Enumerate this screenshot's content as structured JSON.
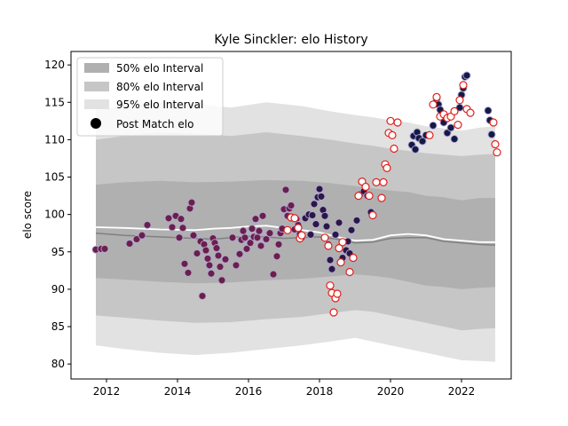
{
  "chart_data": {
    "type": "line",
    "title": "Kyle Sinckler: elo History",
    "xlabel": "",
    "ylabel": "elo score",
    "xlim": [
      2011.0,
      2023.4
    ],
    "ylim": [
      78.0,
      121.8
    ],
    "x_ticks": [
      2012,
      2014,
      2016,
      2018,
      2020,
      2022
    ],
    "y_ticks": [
      80,
      85,
      90,
      95,
      100,
      105,
      110,
      115,
      120
    ],
    "grid": false,
    "legend": {
      "placement": "top-left",
      "entries": [
        "50% elo Interval",
        "80% elo Interval",
        "95% elo Interval",
        "Post Match elo"
      ]
    },
    "colors": {
      "band50": "#b0b0b0",
      "band80": "#c6c6c6",
      "band95": "#e2e2e2",
      "median_line": "#808080",
      "mean_line": "#ffffff",
      "dot_early": "#6b1f4a",
      "dot_mid": "#2b1745",
      "dot_late": "#141a44",
      "dot_ring": "#b0a8d8",
      "hollow_ring": "#e0201a"
    },
    "bands": {
      "x": [
        2011.7,
        2012.5,
        2013.5,
        2014.5,
        2015.5,
        2016.5,
        2017.5,
        2018.3,
        2019.0,
        2019.5,
        2020.0,
        2020.5,
        2021.0,
        2021.5,
        2022.0,
        2022.5,
        2022.95
      ],
      "p50_low": [
        91.5,
        91.3,
        91.0,
        90.8,
        90.9,
        91.2,
        91.4,
        91.7,
        92.0,
        91.8,
        91.5,
        91.0,
        90.5,
        90.3,
        90.0,
        90.2,
        90.3
      ],
      "p50_high": [
        104.0,
        104.3,
        104.5,
        104.3,
        104.4,
        104.6,
        104.5,
        104.2,
        103.8,
        103.5,
        103.2,
        103.0,
        102.5,
        102.3,
        101.9,
        102.2,
        102.2
      ],
      "p80_low": [
        86.5,
        86.2,
        85.8,
        85.5,
        85.6,
        86.0,
        86.3,
        86.8,
        87.2,
        87.0,
        86.5,
        86.0,
        85.5,
        85.0,
        84.5,
        84.7,
        84.8
      ],
      "p80_high": [
        110.0,
        110.5,
        111.0,
        110.8,
        110.5,
        111.0,
        110.5,
        110.0,
        109.5,
        109.2,
        108.8,
        108.5,
        108.2,
        108.0,
        107.8,
        108.0,
        108.1
      ],
      "p95_low": [
        82.5,
        82.0,
        81.5,
        81.2,
        81.5,
        82.0,
        82.5,
        83.0,
        83.5,
        83.0,
        82.5,
        82.0,
        81.5,
        81.0,
        80.5,
        80.4,
        80.3
      ],
      "p95_high": [
        114.0,
        114.5,
        115.0,
        114.8,
        114.3,
        115.0,
        114.5,
        113.8,
        113.3,
        113.0,
        112.6,
        112.3,
        111.8,
        111.5,
        111.2,
        111.6,
        111.8
      ]
    },
    "series": [
      {
        "name": "median",
        "x": [
          2011.7,
          2012.5,
          2013.5,
          2014.5,
          2015.0,
          2015.5,
          2016.0,
          2016.5,
          2017.0,
          2017.5,
          2018.0,
          2018.5,
          2019.0,
          2019.5,
          2020.0,
          2020.5,
          2021.0,
          2021.5,
          2022.0,
          2022.5,
          2022.95
        ],
        "values": [
          97.5,
          97.2,
          97.0,
          96.8,
          96.7,
          96.9,
          97.1,
          97.0,
          96.8,
          96.9,
          97.0,
          96.7,
          96.2,
          96.3,
          96.8,
          96.9,
          96.9,
          96.4,
          96.2,
          96.0,
          95.9
        ]
      },
      {
        "name": "mean",
        "x": [
          2011.7,
          2012.5,
          2013.5,
          2014.5,
          2015.0,
          2015.5,
          2016.0,
          2016.5,
          2017.0,
          2017.5,
          2018.0,
          2018.5,
          2019.0,
          2019.5,
          2020.0,
          2020.5,
          2021.0,
          2021.5,
          2022.0,
          2022.5,
          2022.95
        ],
        "values": [
          98.3,
          98.2,
          98.0,
          97.9,
          98.1,
          98.2,
          98.4,
          98.5,
          98.2,
          97.9,
          97.6,
          97.0,
          96.5,
          96.6,
          97.2,
          97.4,
          97.2,
          96.7,
          96.5,
          96.3,
          96.3
        ]
      }
    ],
    "points": {
      "x": [
        2011.7,
        2011.85,
        2011.95,
        2012.65,
        2012.85,
        2013.0,
        2013.15,
        2013.75,
        2013.85,
        2013.95,
        2014.05,
        2014.1,
        2014.15,
        2014.2,
        2014.3,
        2014.35,
        2014.4,
        2014.45,
        2014.55,
        2014.65,
        2014.7,
        2014.75,
        2014.8,
        2014.85,
        2014.9,
        2014.95,
        2015.0,
        2015.05,
        2015.1,
        2015.15,
        2015.2,
        2015.25,
        2015.35,
        2015.55,
        2015.65,
        2015.75,
        2015.8,
        2015.85,
        2015.9,
        2015.95,
        2016.05,
        2016.1,
        2016.15,
        2016.2,
        2016.25,
        2016.3,
        2016.35,
        2016.4,
        2016.5,
        2016.6,
        2016.7,
        2016.8,
        2016.85,
        2016.9,
        2016.95,
        2017.0,
        2017.05,
        2017.1,
        2017.15,
        2017.2,
        2017.3,
        2017.35,
        2017.4,
        2017.45,
        2017.5,
        2017.6,
        2017.7,
        2017.75,
        2017.8,
        2017.85,
        2017.9,
        2017.95,
        2018.0,
        2018.05,
        2018.1,
        2018.15,
        2018.2,
        2018.25,
        2018.3,
        2018.35,
        2018.45,
        2018.55,
        2018.65,
        2018.75,
        2018.8,
        2018.85,
        2018.9,
        2018.95,
        2019.05,
        2019.15,
        2019.25,
        2019.35,
        2019.45,
        2020.6,
        2020.65,
        2020.7,
        2020.75,
        2020.8,
        2020.9,
        2021.0,
        2021.2,
        2021.3,
        2021.35,
        2021.4,
        2021.5,
        2021.6,
        2021.7,
        2021.8,
        2021.95,
        2022.0,
        2022.05,
        2022.1,
        2022.15,
        2022.75,
        2022.8,
        2022.85
      ],
      "values": [
        95.3,
        95.4,
        95.4,
        96.1,
        96.7,
        97.2,
        98.6,
        99.5,
        98.3,
        99.8,
        96.9,
        99.4,
        98.2,
        93.4,
        92.2,
        100.8,
        101.6,
        97.2,
        94.8,
        96.4,
        89.1,
        96.0,
        95.2,
        94.1,
        93.2,
        92.1,
        96.8,
        96.2,
        95.5,
        94.5,
        93.0,
        91.2,
        94.0,
        96.9,
        93.2,
        94.7,
        96.6,
        97.8,
        96.9,
        95.4,
        96.2,
        98.1,
        97.0,
        99.4,
        96.9,
        97.8,
        95.8,
        99.8,
        96.7,
        97.5,
        92.0,
        94.4,
        96.0,
        97.5,
        98.1,
        100.7,
        103.3,
        99.8,
        100.8,
        101.2,
        98.0,
        99.4,
        98.6,
        97.4,
        96.9,
        99.5,
        100.0,
        97.3,
        99.9,
        101.4,
        98.7,
        102.3,
        103.4,
        102.4,
        100.6,
        99.8,
        98.4,
        96.0,
        93.9,
        92.7,
        97.3,
        98.9,
        94.2,
        95.2,
        96.4,
        94.8,
        97.9,
        94.1,
        99.2,
        102.7,
        103.1,
        102.5,
        100.3,
        109.3,
        110.5,
        108.7,
        111.0,
        110.2,
        109.8,
        110.6,
        111.9,
        115.4,
        114.7,
        114.0,
        112.3,
        110.9,
        111.6,
        110.1,
        114.3,
        116.0,
        116.9,
        118.4,
        118.6,
        113.9,
        112.6,
        110.7
      ]
    },
    "hollow_points": {
      "x": [
        2017.1,
        2017.2,
        2017.3,
        2017.4,
        2017.45,
        2017.5,
        2018.15,
        2018.25,
        2018.3,
        2018.35,
        2018.4,
        2018.45,
        2018.5,
        2018.55,
        2018.6,
        2018.65,
        2018.85,
        2018.95,
        2019.1,
        2019.2,
        2019.3,
        2019.4,
        2019.5,
        2019.6,
        2019.75,
        2019.8,
        2019.85,
        2019.9,
        2019.95,
        2020.0,
        2020.05,
        2020.1,
        2020.2,
        2021.1,
        2021.2,
        2021.3,
        2021.4,
        2021.5,
        2021.6,
        2021.7,
        2021.8,
        2021.9,
        2021.95,
        2022.05,
        2022.15,
        2022.25,
        2022.9,
        2022.95,
        2023.0
      ],
      "values": [
        97.9,
        99.6,
        99.5,
        98.2,
        96.8,
        97.2,
        96.9,
        95.8,
        90.5,
        89.5,
        86.9,
        88.8,
        89.4,
        95.5,
        93.6,
        96.3,
        92.3,
        94.2,
        102.5,
        104.4,
        103.7,
        102.5,
        99.9,
        104.3,
        102.2,
        104.3,
        106.7,
        106.2,
        110.9,
        112.5,
        110.6,
        108.8,
        112.3,
        110.6,
        114.7,
        115.7,
        113.1,
        113.4,
        112.9,
        113.1,
        113.8,
        112.0,
        115.3,
        117.3,
        114.1,
        113.6,
        112.3,
        109.4,
        108.3
      ]
    }
  }
}
